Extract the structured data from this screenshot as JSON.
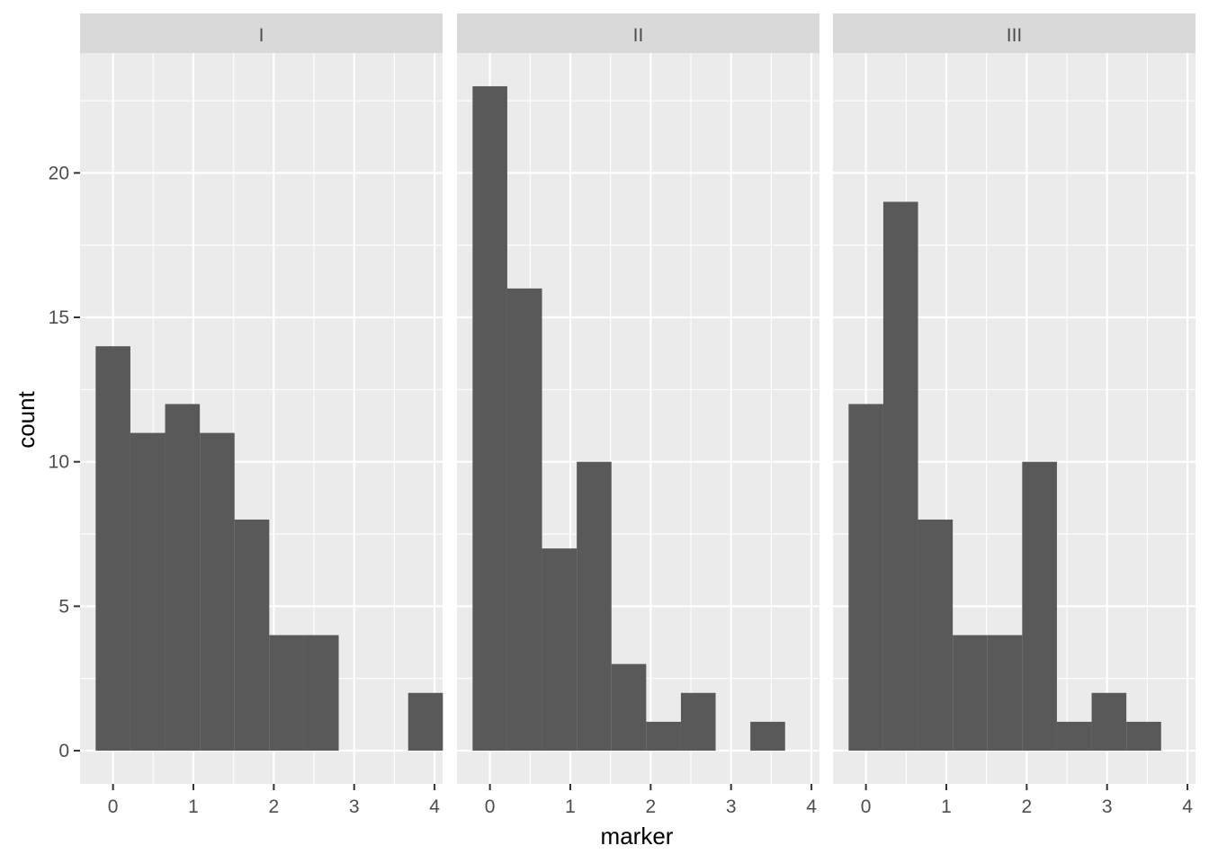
{
  "chart_data": {
    "type": "bar",
    "subtype": "faceted-histogram",
    "xlabel": "marker",
    "ylabel": "count",
    "xlim": [
      -0.41,
      4.1
    ],
    "ylim": [
      -1.15,
      24.15
    ],
    "x_ticks": [
      0,
      1,
      2,
      3,
      4
    ],
    "y_ticks": [
      0,
      5,
      10,
      15,
      20
    ],
    "x_tick_labels": [
      "0",
      "1",
      "2",
      "3",
      "4"
    ],
    "y_tick_labels": [
      "0",
      "5",
      "10",
      "15",
      "20"
    ],
    "grid": true,
    "legend": "none",
    "bar_color": "#595959",
    "panel_background": "#ebebeb",
    "strip_background": "#d9d9d9",
    "grid_color": "#ffffff",
    "bin_width": 0.432,
    "facets": [
      {
        "label": "I",
        "bins": [
          {
            "x": 0.0,
            "count": 14
          },
          {
            "x": 0.432,
            "count": 11
          },
          {
            "x": 0.864,
            "count": 12
          },
          {
            "x": 1.296,
            "count": 11
          },
          {
            "x": 1.728,
            "count": 8
          },
          {
            "x": 2.16,
            "count": 4
          },
          {
            "x": 2.592,
            "count": 4
          },
          {
            "x": 3.024,
            "count": 0
          },
          {
            "x": 3.456,
            "count": 0
          },
          {
            "x": 3.888,
            "count": 2
          }
        ]
      },
      {
        "label": "II",
        "bins": [
          {
            "x": 0.0,
            "count": 23
          },
          {
            "x": 0.432,
            "count": 16
          },
          {
            "x": 0.864,
            "count": 7
          },
          {
            "x": 1.296,
            "count": 10
          },
          {
            "x": 1.728,
            "count": 3
          },
          {
            "x": 2.16,
            "count": 1
          },
          {
            "x": 2.592,
            "count": 2
          },
          {
            "x": 3.024,
            "count": 0
          },
          {
            "x": 3.456,
            "count": 1
          }
        ]
      },
      {
        "label": "III",
        "bins": [
          {
            "x": 0.0,
            "count": 12
          },
          {
            "x": 0.432,
            "count": 19
          },
          {
            "x": 0.864,
            "count": 8
          },
          {
            "x": 1.296,
            "count": 4
          },
          {
            "x": 1.728,
            "count": 4
          },
          {
            "x": 2.16,
            "count": 10
          },
          {
            "x": 2.592,
            "count": 1
          },
          {
            "x": 3.024,
            "count": 2
          },
          {
            "x": 3.456,
            "count": 1
          }
        ]
      }
    ]
  }
}
